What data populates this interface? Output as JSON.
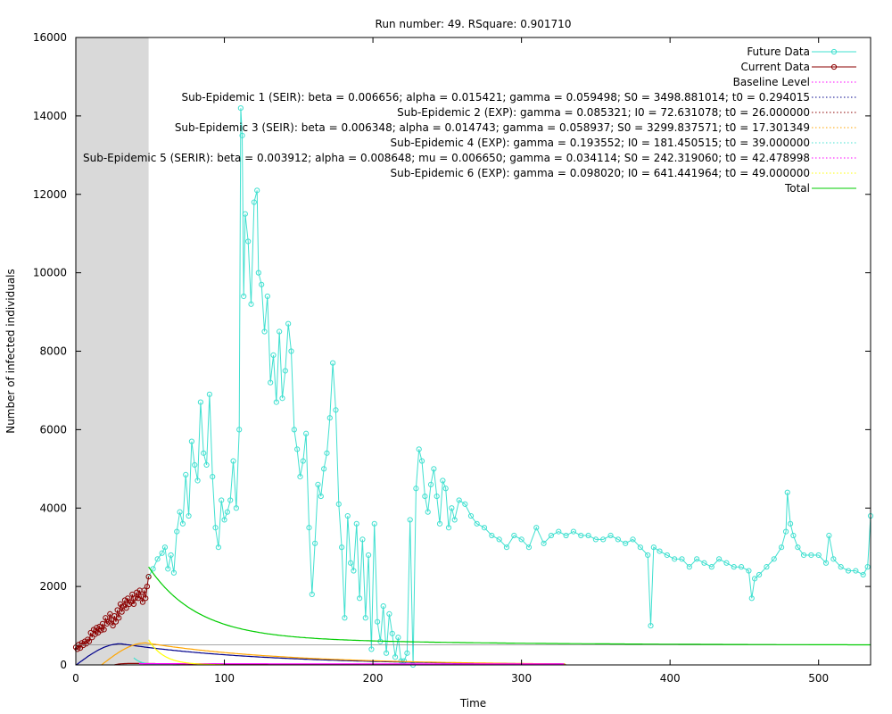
{
  "chart_data": {
    "type": "line",
    "title": "Run number: 49. RSquare: 0.901710",
    "xlabel": "Time",
    "ylabel": "Number of infected individuals",
    "xlim": [
      0,
      535
    ],
    "ylim": [
      0,
      16000
    ],
    "x_ticks": [
      0,
      100,
      200,
      300,
      400,
      500
    ],
    "y_ticks": [
      0,
      2000,
      4000,
      6000,
      8000,
      10000,
      12000,
      14000,
      16000
    ],
    "grid": false,
    "legend_position": "top-right",
    "shaded_region": {
      "x": [
        0,
        49
      ],
      "color": "#d9d9d9"
    },
    "series": [
      {
        "name": "Future Data",
        "color": "#40e0d0",
        "style": "line-points",
        "points": [
          [
            49,
            2250
          ],
          [
            52,
            2450
          ],
          [
            55,
            2700
          ],
          [
            58,
            2850
          ],
          [
            60,
            3000
          ],
          [
            62,
            2450
          ],
          [
            64,
            2800
          ],
          [
            66,
            2350
          ],
          [
            68,
            3400
          ],
          [
            70,
            3900
          ],
          [
            72,
            3600
          ],
          [
            74,
            4850
          ],
          [
            76,
            3800
          ],
          [
            78,
            5700
          ],
          [
            80,
            5100
          ],
          [
            82,
            4700
          ],
          [
            84,
            6700
          ],
          [
            86,
            5400
          ],
          [
            88,
            5100
          ],
          [
            90,
            6900
          ],
          [
            92,
            4800
          ],
          [
            94,
            3500
          ],
          [
            96,
            3000
          ],
          [
            98,
            4200
          ],
          [
            100,
            3700
          ],
          [
            102,
            3900
          ],
          [
            104,
            4200
          ],
          [
            106,
            5200
          ],
          [
            108,
            4000
          ],
          [
            110,
            6000
          ],
          [
            111,
            14200
          ],
          [
            112,
            13500
          ],
          [
            113,
            9400
          ],
          [
            114,
            11500
          ],
          [
            116,
            10800
          ],
          [
            118,
            9200
          ],
          [
            120,
            11800
          ],
          [
            122,
            12100
          ],
          [
            123,
            10000
          ],
          [
            125,
            9700
          ],
          [
            127,
            8500
          ],
          [
            129,
            9400
          ],
          [
            131,
            7200
          ],
          [
            133,
            7900
          ],
          [
            135,
            6700
          ],
          [
            137,
            8500
          ],
          [
            139,
            6800
          ],
          [
            141,
            7500
          ],
          [
            143,
            8700
          ],
          [
            145,
            8000
          ],
          [
            147,
            6000
          ],
          [
            149,
            5500
          ],
          [
            151,
            4800
          ],
          [
            153,
            5200
          ],
          [
            155,
            5900
          ],
          [
            157,
            3500
          ],
          [
            159,
            1800
          ],
          [
            161,
            3100
          ],
          [
            163,
            4600
          ],
          [
            165,
            4300
          ],
          [
            167,
            5000
          ],
          [
            169,
            5400
          ],
          [
            171,
            6300
          ],
          [
            173,
            7700
          ],
          [
            175,
            6500
          ],
          [
            177,
            4100
          ],
          [
            179,
            3000
          ],
          [
            181,
            1200
          ],
          [
            183,
            3800
          ],
          [
            185,
            2600
          ],
          [
            187,
            2400
          ],
          [
            189,
            3600
          ],
          [
            191,
            1700
          ],
          [
            193,
            3200
          ],
          [
            195,
            1200
          ],
          [
            197,
            2800
          ],
          [
            199,
            400
          ],
          [
            201,
            3600
          ],
          [
            203,
            1100
          ],
          [
            205,
            600
          ],
          [
            207,
            1500
          ],
          [
            209,
            300
          ],
          [
            211,
            1300
          ],
          [
            213,
            800
          ],
          [
            215,
            200
          ],
          [
            217,
            700
          ],
          [
            219,
            100
          ],
          [
            221,
            100
          ],
          [
            223,
            300
          ],
          [
            225,
            3700
          ],
          [
            227,
            0
          ],
          [
            229,
            4500
          ],
          [
            231,
            5500
          ],
          [
            233,
            5200
          ],
          [
            235,
            4300
          ],
          [
            237,
            3900
          ],
          [
            239,
            4600
          ],
          [
            241,
            5000
          ],
          [
            243,
            4300
          ],
          [
            245,
            3600
          ],
          [
            247,
            4700
          ],
          [
            249,
            4500
          ],
          [
            251,
            3500
          ],
          [
            253,
            4000
          ],
          [
            255,
            3700
          ],
          [
            258,
            4200
          ],
          [
            262,
            4100
          ],
          [
            266,
            3800
          ],
          [
            270,
            3600
          ],
          [
            275,
            3500
          ],
          [
            280,
            3300
          ],
          [
            285,
            3200
          ],
          [
            290,
            3000
          ],
          [
            295,
            3300
          ],
          [
            300,
            3200
          ],
          [
            305,
            3000
          ],
          [
            310,
            3500
          ],
          [
            315,
            3100
          ],
          [
            320,
            3300
          ],
          [
            325,
            3400
          ],
          [
            330,
            3300
          ],
          [
            335,
            3400
          ],
          [
            340,
            3300
          ],
          [
            345,
            3300
          ],
          [
            350,
            3200
          ],
          [
            355,
            3200
          ],
          [
            360,
            3300
          ],
          [
            365,
            3200
          ],
          [
            370,
            3100
          ],
          [
            375,
            3200
          ],
          [
            380,
            3000
          ],
          [
            385,
            2800
          ],
          [
            387,
            1000
          ],
          [
            389,
            3000
          ],
          [
            393,
            2900
          ],
          [
            398,
            2800
          ],
          [
            403,
            2700
          ],
          [
            408,
            2700
          ],
          [
            413,
            2500
          ],
          [
            418,
            2700
          ],
          [
            423,
            2600
          ],
          [
            428,
            2500
          ],
          [
            433,
            2700
          ],
          [
            438,
            2600
          ],
          [
            443,
            2500
          ],
          [
            448,
            2500
          ],
          [
            453,
            2400
          ],
          [
            455,
            1700
          ],
          [
            457,
            2200
          ],
          [
            460,
            2300
          ],
          [
            465,
            2500
          ],
          [
            470,
            2700
          ],
          [
            475,
            3000
          ],
          [
            478,
            3400
          ],
          [
            479,
            4400
          ],
          [
            481,
            3600
          ],
          [
            483,
            3300
          ],
          [
            486,
            3000
          ],
          [
            490,
            2800
          ],
          [
            495,
            2800
          ],
          [
            500,
            2800
          ],
          [
            505,
            2600
          ],
          [
            507,
            3300
          ],
          [
            510,
            2700
          ],
          [
            515,
            2500
          ],
          [
            520,
            2400
          ],
          [
            525,
            2400
          ],
          [
            530,
            2300
          ],
          [
            533,
            2500
          ],
          [
            535,
            3800
          ]
        ]
      },
      {
        "name": "Current Data",
        "color": "#8b0000",
        "style": "line-points",
        "points": [
          [
            0,
            450
          ],
          [
            1,
            400
          ],
          [
            2,
            520
          ],
          [
            3,
            430
          ],
          [
            4,
            560
          ],
          [
            5,
            500
          ],
          [
            6,
            600
          ],
          [
            7,
            540
          ],
          [
            8,
            650
          ],
          [
            9,
            600
          ],
          [
            10,
            820
          ],
          [
            11,
            700
          ],
          [
            12,
            900
          ],
          [
            13,
            780
          ],
          [
            14,
            950
          ],
          [
            15,
            820
          ],
          [
            16,
            980
          ],
          [
            17,
            880
          ],
          [
            18,
            1050
          ],
          [
            19,
            900
          ],
          [
            20,
            1200
          ],
          [
            21,
            1050
          ],
          [
            22,
            1100
          ],
          [
            23,
            1300
          ],
          [
            24,
            1150
          ],
          [
            25,
            1000
          ],
          [
            26,
            1250
          ],
          [
            27,
            1100
          ],
          [
            28,
            1400
          ],
          [
            29,
            1200
          ],
          [
            30,
            1550
          ],
          [
            31,
            1350
          ],
          [
            32,
            1500
          ],
          [
            33,
            1650
          ],
          [
            34,
            1450
          ],
          [
            35,
            1700
          ],
          [
            36,
            1550
          ],
          [
            37,
            1600
          ],
          [
            38,
            1800
          ],
          [
            39,
            1550
          ],
          [
            40,
            1700
          ],
          [
            41,
            1850
          ],
          [
            42,
            1700
          ],
          [
            43,
            1900
          ],
          [
            44,
            1750
          ],
          [
            45,
            1600
          ],
          [
            46,
            1900
          ],
          [
            47,
            1700
          ],
          [
            48,
            2000
          ],
          [
            49,
            2250
          ]
        ]
      },
      {
        "name": "Baseline Level",
        "color": "#ff00ff",
        "style": "dotted",
        "fn": "baseline"
      },
      {
        "name": "Sub-Epidemic 1 (SEIR): beta = 0.006656; alpha = 0.015421; gamma = 0.059498; S0 = 3498.881014; t0 = 0.294015",
        "color": "#00008b",
        "style": "dotted",
        "fn": "seir1"
      },
      {
        "name": "Sub-Epidemic 2 (EXP): gamma = 0.085321; I0 = 72.631078; t0 = 26.000000",
        "color": "#8b0000",
        "style": "dotted",
        "fn": "exp2"
      },
      {
        "name": "Sub-Epidemic 3 (SEIR): beta = 0.006348; alpha = 0.014743; gamma = 0.058937; S0 = 3299.837571; t0 = 17.301349",
        "color": "#ffa500",
        "style": "dotted",
        "fn": "seir3"
      },
      {
        "name": "Sub-Epidemic 4 (EXP): gamma = 0.193552; I0 = 181.450515; t0 = 39.000000",
        "color": "#40e0d0",
        "style": "dotted",
        "fn": "exp4"
      },
      {
        "name": "Sub-Epidemic 5 (SERIR): beta = 0.003912; alpha = 0.008648; mu = 0.006650; gamma = 0.034114; S0 = 242.319060; t0 = 42.478998",
        "color": "#ff00ff",
        "style": "dotted",
        "fn": "serir5"
      },
      {
        "name": "Sub-Epidemic 6 (EXP): gamma = 0.098020; I0 = 641.441964; t0 = 49.000000",
        "color": "#ffff00",
        "style": "dotted",
        "fn": "exp6"
      },
      {
        "name": "Total",
        "color": "#00cc00",
        "style": "line",
        "fn": "total"
      }
    ]
  }
}
